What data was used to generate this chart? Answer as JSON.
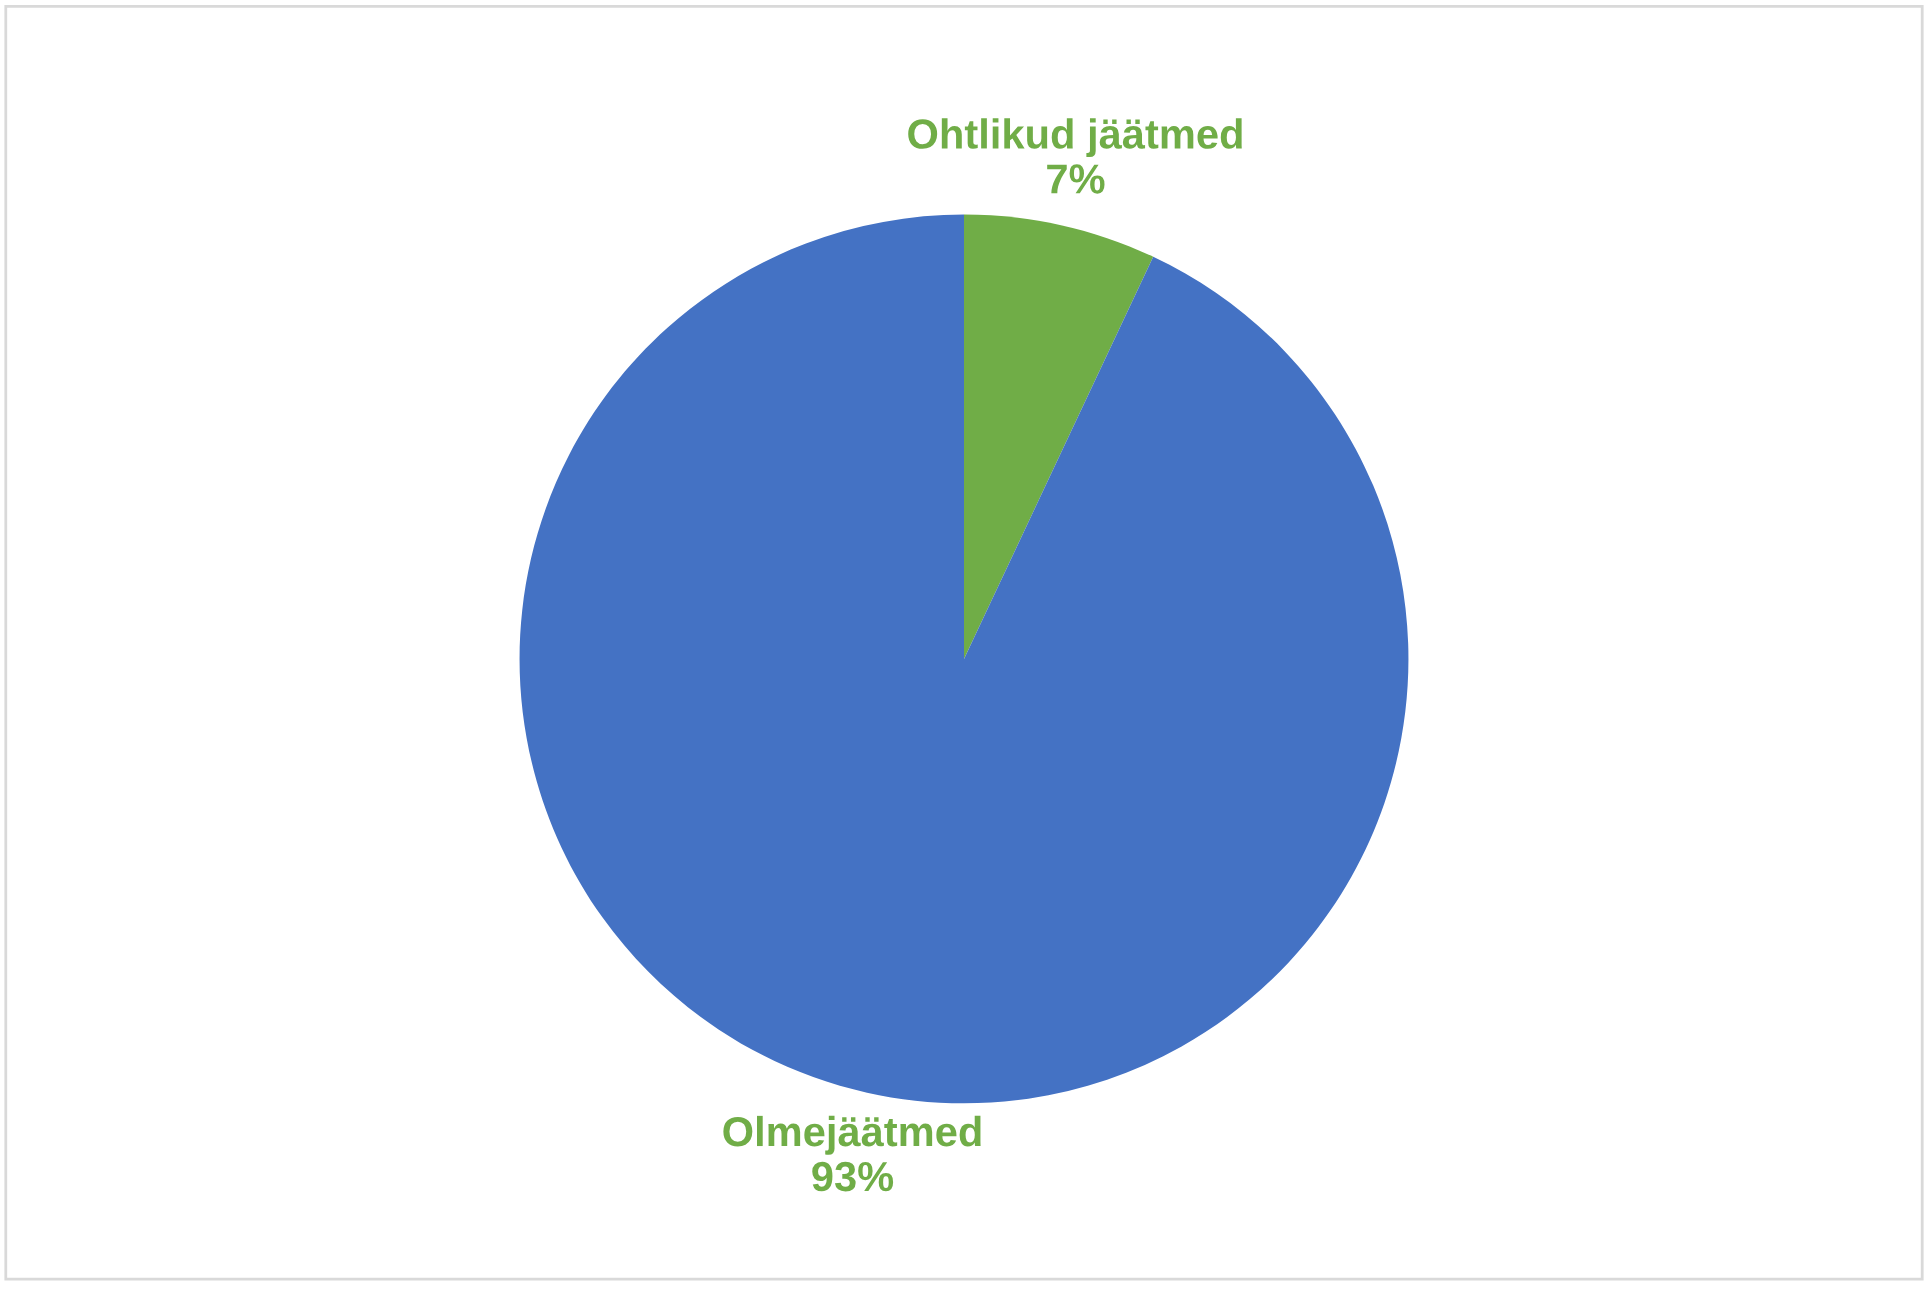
{
  "chart_data": {
    "type": "pie",
    "categories": [
      "Ohtlikud jäätmed",
      "Olmejäätmed"
    ],
    "values": [
      7,
      93
    ],
    "colors": [
      "#70ad47",
      "#4472c4"
    ],
    "value_labels": [
      "7%",
      "93%"
    ],
    "legend": false
  }
}
